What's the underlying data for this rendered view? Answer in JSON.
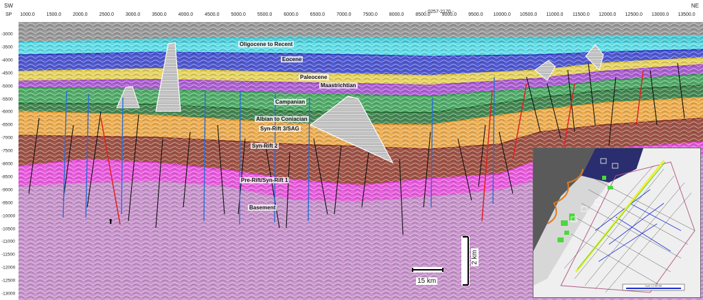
{
  "header": {
    "left_direction": "SW",
    "right_direction": "NE",
    "sp_label": "SP",
    "line_id": "- 0257-2170 -",
    "sp_ticks": [
      "1000.0",
      "1500.0",
      "2000.0",
      "2500.0",
      "3000.0",
      "3500.0",
      "4000.0",
      "4500.0",
      "5000.0",
      "5500.0",
      "6000.0",
      "6500.0",
      "7000.0",
      "7500.0",
      "8000.0",
      "8500.0",
      "9000.0",
      "9500.0",
      "10000.0",
      "10500.0",
      "11000.0",
      "11500.0",
      "12000.0",
      "12500.0",
      "13000.0",
      "13500.0"
    ]
  },
  "depth_axis": {
    "ticks": [
      "-3000",
      "-3500",
      "-4000",
      "-4500",
      "-5000",
      "-5500",
      "-6000",
      "-6500",
      "-7000",
      "-7500",
      "-8000",
      "-8500",
      "-9000",
      "-9500",
      "-10000",
      "-10500",
      "-11000",
      "-11500",
      "-12000",
      "-12500",
      "-13000"
    ]
  },
  "horizons": [
    {
      "label": "Oligocene to Recent",
      "color": "#3fd4e0"
    },
    {
      "label": "Eocene",
      "color": "#2a35c9"
    },
    {
      "label": "Paleocene",
      "color": "#e0c93a"
    },
    {
      "label": "Maastrichtian",
      "color": "#9b3ec9"
    },
    {
      "label": "Campanian",
      "color": "#2e9a4a"
    },
    {
      "label": "Albian to Coniacian",
      "color": "#1e6d2e"
    },
    {
      "label": "Syn-Rift 3/SAG",
      "color": "#e89b2b"
    },
    {
      "label": "Syn-Rift 2",
      "color": "#8a2e1e"
    },
    {
      "label": "Pre-Rift/Syn-Rift 1",
      "color": "#e03ad4"
    },
    {
      "label": "Basement",
      "color": "#c58ec9"
    }
  ],
  "scale_bars": {
    "horizontal_label": "15 km",
    "vertical_label": "2 km"
  },
  "inset_map": {
    "scale_text": "Scale 1:1 500 000"
  }
}
